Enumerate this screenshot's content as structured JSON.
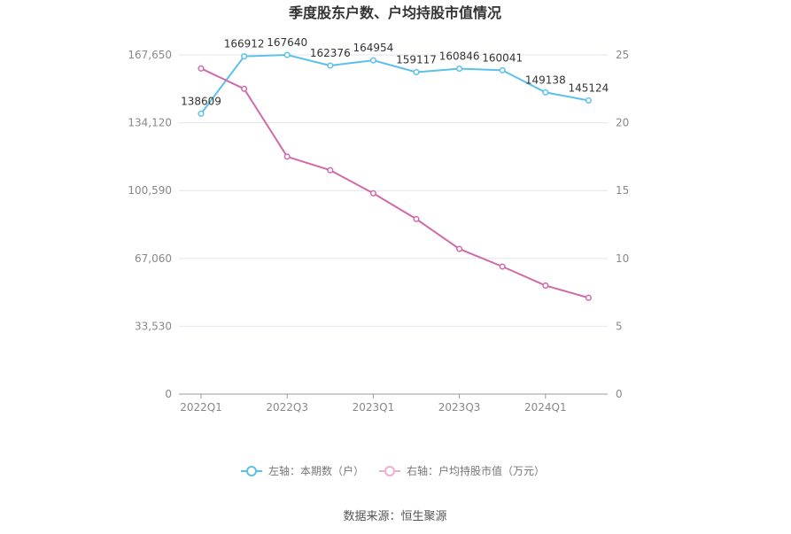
{
  "chart_data": {
    "type": "line",
    "title": "季度股东户数、户均持股市值情况",
    "x": [
      "2022Q1",
      "2022Q2",
      "2022Q3",
      "2022Q4",
      "2023Q1",
      "2023Q2",
      "2023Q3",
      "2023Q4",
      "2024Q1",
      "2024Q2"
    ],
    "x_tick_labels": [
      "2022Q1",
      "2022Q3",
      "2023Q1",
      "2023Q3",
      "2024Q1"
    ],
    "left_axis": {
      "ylim": [
        0,
        167650
      ],
      "ticks": [
        "0",
        "33,530",
        "67,060",
        "100,590",
        "134,120",
        "167,650"
      ],
      "tick_values": [
        0,
        33530,
        67060,
        100590,
        134120,
        167650
      ]
    },
    "right_axis": {
      "ylim": [
        0,
        25
      ],
      "ticks": [
        "0",
        "5",
        "10",
        "15",
        "20",
        "25"
      ],
      "tick_values": [
        0,
        5,
        10,
        15,
        20,
        25
      ]
    },
    "series": [
      {
        "name": "左轴：本期数（户）",
        "axis": "left",
        "color": "#5bc0eb",
        "values": [
          138609,
          166912,
          167640,
          162376,
          164954,
          159117,
          160846,
          160041,
          149138,
          145124
        ],
        "labels": [
          "138609",
          "166912",
          "167640",
          "162376",
          "164954",
          "159117",
          "160846",
          "160041",
          "149138",
          "145124"
        ]
      },
      {
        "name": "右轴：户均持股市值（万元）",
        "axis": "right",
        "color": "#d06aa9",
        "values": [
          24.0,
          22.5,
          17.5,
          16.5,
          14.8,
          12.9,
          10.7,
          9.4,
          8.0,
          7.1
        ]
      }
    ],
    "legend_position": "bottom",
    "grid": true
  },
  "footer": {
    "source": "数据来源：恒生聚源"
  }
}
